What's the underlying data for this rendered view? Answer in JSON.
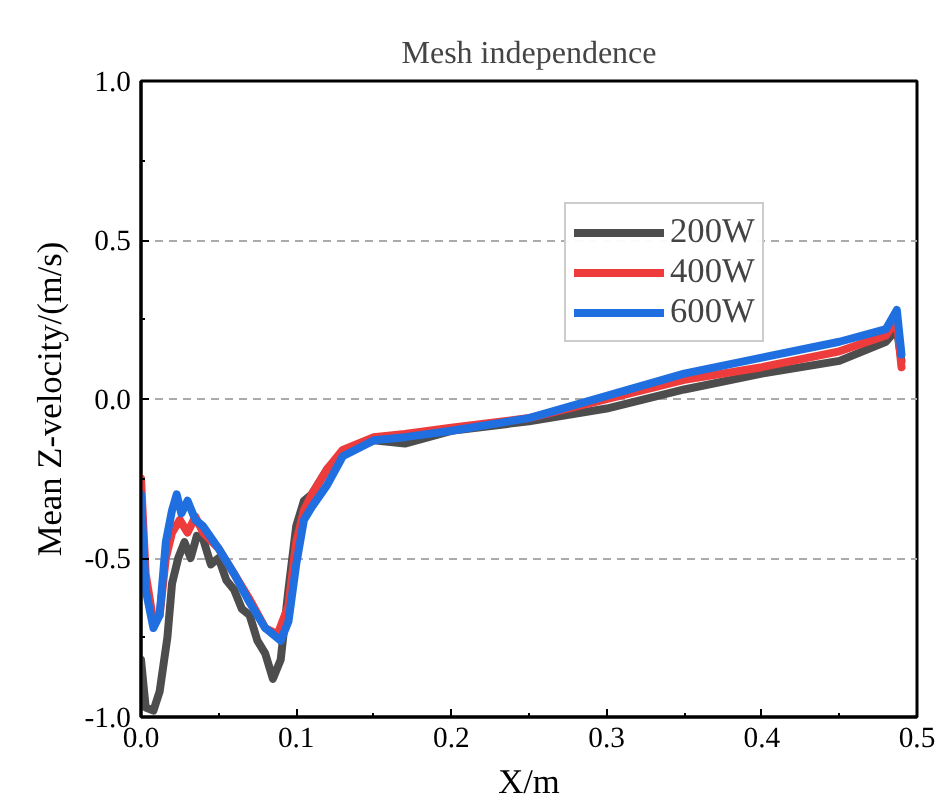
{
  "chart_data": {
    "type": "line",
    "title": "Mesh independence",
    "xlabel": "X/m",
    "ylabel": "Mean Z-velocity/(m/s)",
    "xlim": [
      0,
      0.5
    ],
    "ylim": [
      -1,
      1
    ],
    "xticks": [
      {
        "value": 0,
        "label": "0.0"
      },
      0.1,
      0.2,
      0.3,
      0.4,
      0.5
    ],
    "yticks": [
      {
        "value": -1,
        "label": "-1.0"
      },
      {
        "value": -0.5,
        "label": "-0.5"
      },
      {
        "value": 0,
        "label": "0.0"
      },
      0.5,
      {
        "value": 1,
        "label": "1.0"
      }
    ],
    "grid": "y",
    "legend": "top right",
    "line_style": "solid",
    "marker": "none",
    "series": [
      {
        "name": "200W",
        "color": "#4d4d4d",
        "x": [
          0,
          0.003,
          0.008,
          0.012,
          0.017,
          0.02,
          0.024,
          0.028,
          0.032,
          0.036,
          0.04,
          0.045,
          0.05,
          0.055,
          0.06,
          0.065,
          0.07,
          0.075,
          0.08,
          0.085,
          0.09,
          0.095,
          0.1,
          0.105,
          0.11,
          0.12,
          0.13,
          0.15,
          0.17,
          0.2,
          0.25,
          0.3,
          0.35,
          0.4,
          0.45,
          0.48,
          0.487,
          0.49
        ],
        "values": [
          -0.82,
          -0.97,
          -0.98,
          -0.92,
          -0.75,
          -0.58,
          -0.5,
          -0.45,
          -0.5,
          -0.43,
          -0.44,
          -0.52,
          -0.5,
          -0.57,
          -0.6,
          -0.66,
          -0.68,
          -0.76,
          -0.8,
          -0.88,
          -0.82,
          -0.6,
          -0.4,
          -0.32,
          -0.3,
          -0.22,
          -0.17,
          -0.13,
          -0.14,
          -0.1,
          -0.07,
          -0.03,
          0.03,
          0.08,
          0.12,
          0.18,
          0.22,
          0.12
        ]
      },
      {
        "name": "400W",
        "color": "#ee3b3b",
        "x": [
          0,
          0.003,
          0.008,
          0.012,
          0.016,
          0.02,
          0.025,
          0.03,
          0.035,
          0.04,
          0.05,
          0.06,
          0.07,
          0.08,
          0.088,
          0.095,
          0.1,
          0.105,
          0.11,
          0.12,
          0.13,
          0.15,
          0.17,
          0.2,
          0.25,
          0.3,
          0.35,
          0.4,
          0.45,
          0.48,
          0.487,
          0.49
        ],
        "values": [
          -0.25,
          -0.55,
          -0.7,
          -0.68,
          -0.5,
          -0.42,
          -0.38,
          -0.42,
          -0.37,
          -0.42,
          -0.47,
          -0.55,
          -0.63,
          -0.72,
          -0.74,
          -0.65,
          -0.45,
          -0.35,
          -0.3,
          -0.22,
          -0.16,
          -0.12,
          -0.11,
          -0.09,
          -0.06,
          0.0,
          0.06,
          0.1,
          0.15,
          0.2,
          0.25,
          0.1
        ]
      },
      {
        "name": "600W",
        "color": "#1f6fe0",
        "x": [
          0,
          0.003,
          0.008,
          0.012,
          0.016,
          0.02,
          0.023,
          0.026,
          0.03,
          0.035,
          0.04,
          0.05,
          0.06,
          0.07,
          0.08,
          0.09,
          0.095,
          0.1,
          0.105,
          0.11,
          0.12,
          0.13,
          0.15,
          0.17,
          0.2,
          0.25,
          0.3,
          0.35,
          0.4,
          0.45,
          0.48,
          0.487,
          0.49
        ],
        "values": [
          -0.3,
          -0.6,
          -0.72,
          -0.68,
          -0.45,
          -0.35,
          -0.3,
          -0.36,
          -0.32,
          -0.38,
          -0.4,
          -0.47,
          -0.55,
          -0.64,
          -0.72,
          -0.76,
          -0.7,
          -0.52,
          -0.38,
          -0.34,
          -0.27,
          -0.18,
          -0.13,
          -0.12,
          -0.1,
          -0.06,
          0.01,
          0.08,
          0.13,
          0.18,
          0.22,
          0.28,
          0.14
        ]
      }
    ]
  }
}
